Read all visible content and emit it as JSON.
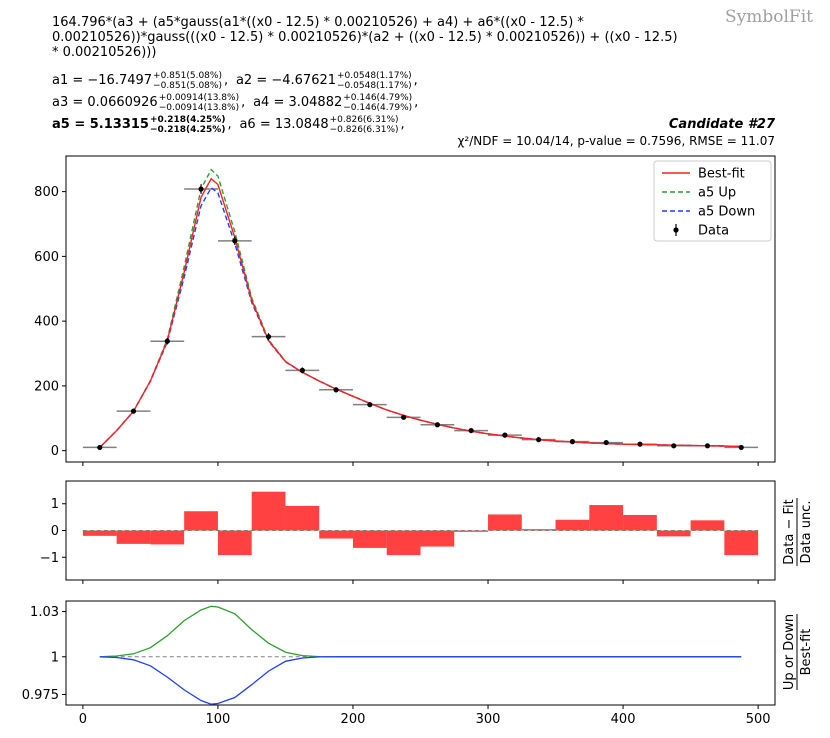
{
  "header": {
    "brand": "SymbolFit",
    "formula_lines": [
      "164.796*(a3 + (a5*gauss(a1*((x0 - 12.5) * 0.00210526) + a4) + a6*((x0 - 12.5) *",
      "0.00210526))*gauss(((x0 - 12.5) * 0.00210526)*(a2 + ((x0 - 12.5) * 0.00210526)) + ((x0 - 12.5)",
      "* 0.00210526)))"
    ],
    "params": [
      {
        "name": "a1",
        "value": "−16.7497",
        "up": "+0.851(5.08%)",
        "down": "−0.851(5.08%)",
        "bold": false
      },
      {
        "name": "a2",
        "value": "−4.67621",
        "up": "+0.0548(1.17%)",
        "down": "−0.0548(1.17%)",
        "bold": false
      },
      {
        "name": "a3",
        "value": "0.0660926",
        "up": "+0.00914(13.8%)",
        "down": "−0.00914(13.8%)",
        "bold": false
      },
      {
        "name": "a4",
        "value": "3.04882",
        "up": "+0.146(4.79%)",
        "down": "−0.146(4.79%)",
        "bold": false
      },
      {
        "name": "a5",
        "value": "5.13315",
        "up": "+0.218(4.25%)",
        "down": "−0.218(4.25%)",
        "bold": true
      },
      {
        "name": "a6",
        "value": "13.0848",
        "up": "+0.826(6.31%)",
        "down": "−0.826(6.31%)",
        "bold": false
      }
    ],
    "candidate": "Candidate #27",
    "stats": "χ²/NDF = 10.04/14, p-value = 0.7596, RMSE = 11.07"
  },
  "chart_data": [
    {
      "type": "line",
      "panel": "main",
      "xlim": [
        -12.5,
        512.5
      ],
      "ylim": [
        -35,
        910
      ],
      "yticks": [
        0,
        200,
        400,
        600,
        800
      ],
      "legend_position": "top-right",
      "legend": [
        "Best-fit",
        "a5 Up",
        "a5 Down",
        "Data"
      ],
      "colors": {
        "bestfit": "#ff2020",
        "up": "#2ca02c",
        "down": "#1f3fff",
        "data": "#000000",
        "xerr": "#808080"
      },
      "data": {
        "x": [
          12.5,
          37.5,
          62.5,
          87.5,
          112.5,
          137.5,
          162.5,
          187.5,
          212.5,
          237.5,
          262.5,
          287.5,
          312.5,
          337.5,
          362.5,
          387.5,
          412.5,
          437.5,
          462.5,
          487.5
        ],
        "xerr": 12.5,
        "y": [
          10,
          122,
          338,
          808,
          648,
          352,
          248,
          188,
          142,
          103,
          80,
          62,
          48,
          34,
          28,
          25,
          20,
          15,
          15,
          10
        ],
        "yerr": [
          3,
          6,
          10,
          15,
          13,
          11,
          9,
          8,
          7,
          6,
          5,
          4,
          4,
          3,
          3,
          3,
          2,
          2,
          2,
          2
        ]
      },
      "curves": {
        "x": [
          12.5,
          25,
          37.5,
          50,
          62.5,
          75,
          87.5,
          95,
          100,
          112.5,
          125,
          137.5,
          150,
          162.5,
          175,
          187.5,
          200,
          212.5,
          225,
          237.5,
          250,
          262.5,
          275,
          287.5,
          300,
          312.5,
          325,
          337.5,
          350,
          362.5,
          375,
          387.5,
          400,
          412.5,
          425,
          437.5,
          450,
          462.5,
          475,
          487.5
        ],
        "bestfit": [
          10,
          62,
          122,
          215,
          340,
          552,
          782,
          840,
          822,
          658,
          465,
          340,
          275,
          242,
          215,
          190,
          168,
          146,
          126,
          109,
          94,
          81,
          70,
          60,
          52,
          45,
          39,
          34,
          30,
          27,
          24,
          22,
          20,
          19,
          18,
          17,
          16,
          15,
          14,
          13
        ],
        "up": [
          10,
          62,
          122,
          216,
          344,
          568,
          808,
          868,
          848,
          676,
          472,
          342,
          276,
          242,
          215,
          190,
          168,
          146,
          126,
          109,
          94,
          81,
          70,
          60,
          52,
          45,
          39,
          34,
          30,
          27,
          24,
          22,
          20,
          19,
          18,
          17,
          16,
          15,
          14,
          13
        ],
        "down": [
          10,
          62,
          122,
          214,
          336,
          536,
          756,
          812,
          796,
          640,
          458,
          338,
          274,
          242,
          215,
          190,
          168,
          146,
          126,
          109,
          94,
          81,
          70,
          60,
          52,
          45,
          39,
          34,
          30,
          27,
          24,
          22,
          20,
          19,
          18,
          17,
          16,
          15,
          14,
          13
        ]
      }
    },
    {
      "type": "bar",
      "panel": "residual",
      "ylabel": "Data − Fit",
      "ylabel_denominator": "Data unc.",
      "xlim": [
        -12.5,
        512.5
      ],
      "ylim": [
        -1.85,
        1.85
      ],
      "yticks": [
        -1,
        0,
        1
      ],
      "bin_edges": [
        0,
        25,
        50,
        75,
        100,
        125,
        150,
        175,
        200,
        225,
        250,
        275,
        300,
        325,
        350,
        375,
        400,
        425,
        450,
        475,
        500
      ],
      "values": [
        -0.2,
        -0.5,
        -0.52,
        0.72,
        -0.92,
        1.45,
        0.92,
        -0.3,
        -0.65,
        -0.92,
        -0.6,
        -0.05,
        0.6,
        0.05,
        0.4,
        0.95,
        0.58,
        -0.22,
        0.38,
        -0.92
      ],
      "color": "#ff2020"
    },
    {
      "type": "line",
      "panel": "ratio",
      "ylabel": "Up or Down",
      "ylabel_denominator": "Best-fit",
      "xlim": [
        -12.5,
        512.5
      ],
      "ylim": [
        0.968,
        1.037
      ],
      "yticks": [
        0.975,
        1,
        1.03
      ],
      "ytick_labels": [
        "0.975",
        "1",
        "1.03"
      ],
      "xticks": [
        0,
        100,
        200,
        300,
        400,
        500
      ],
      "x": [
        12.5,
        25,
        37.5,
        50,
        62.5,
        75,
        87.5,
        95,
        100,
        112.5,
        125,
        137.5,
        150,
        162.5,
        175,
        187.5,
        200,
        250,
        300,
        350,
        400,
        450,
        487.5
      ],
      "up": [
        1.0,
        1.0005,
        1.002,
        1.006,
        1.014,
        1.024,
        1.031,
        1.0335,
        1.033,
        1.0285,
        1.018,
        1.009,
        1.003,
        1.0008,
        1.0001,
        1.0,
        1.0,
        1.0,
        1.0,
        1.0,
        1.0,
        1.0,
        1.0
      ],
      "down": [
        1.0,
        0.9995,
        0.998,
        0.994,
        0.9865,
        0.978,
        0.971,
        0.9685,
        0.969,
        0.973,
        0.9815,
        0.9905,
        0.997,
        0.9992,
        0.9999,
        1.0,
        1.0,
        1.0,
        1.0,
        1.0,
        1.0,
        1.0,
        1.0
      ],
      "colors": {
        "up": "#2ca02c",
        "down": "#1f3fff",
        "baseline": "#808080"
      }
    }
  ]
}
